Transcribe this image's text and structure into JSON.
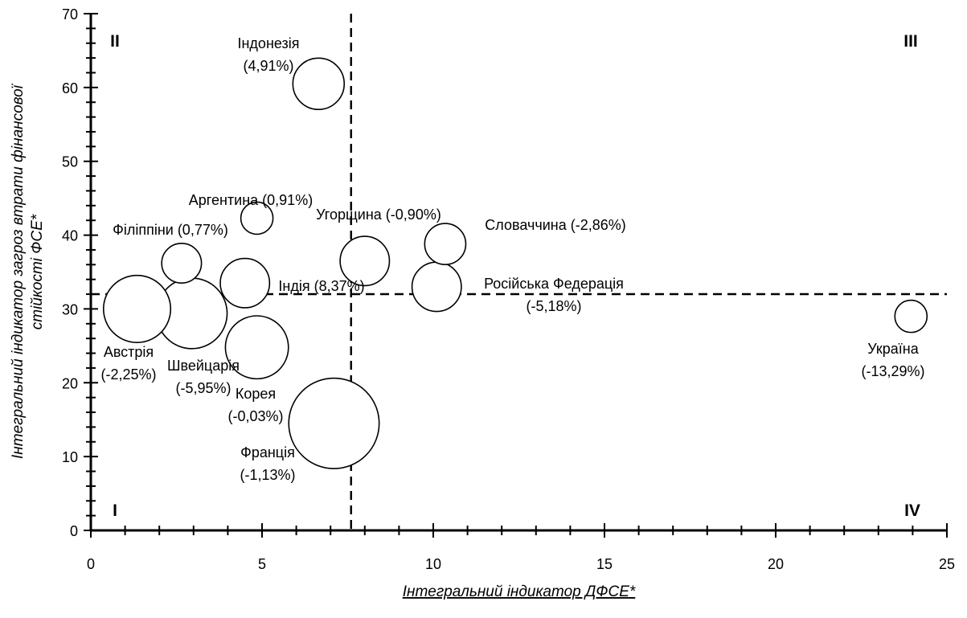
{
  "chart_data": {
    "type": "scatter",
    "subtype": "bubble",
    "title": "",
    "xlabel": "Інтегральний індикатор ДФСЕ*",
    "ylabel_lines": [
      "Інтегральний індикатор загроз втрати фінансової",
      "стійкості ФСЕ*"
    ],
    "xlim": [
      0,
      25
    ],
    "ylim": [
      0,
      70
    ],
    "x_ticks": [
      "0",
      "5",
      "10",
      "15",
      "20",
      "25"
    ],
    "y_ticks": [
      "0",
      "10",
      "20",
      "30",
      "40",
      "50",
      "60",
      "70"
    ],
    "grid": false,
    "reference_lines": {
      "x": 7.6,
      "y": 32
    },
    "quadrant_labels": [
      "I",
      "II",
      "III",
      "IV"
    ],
    "points": [
      {
        "x": 6.65,
        "y": 60.5,
        "r": 0.75,
        "label_lines": [
          "Індонезія",
          "(4,91%)"
        ]
      },
      {
        "x": 4.85,
        "y": 42.3,
        "r": 0.47,
        "label_lines": [
          "Аргентина (0,91%)"
        ]
      },
      {
        "x": 2.65,
        "y": 36.2,
        "r": 0.58,
        "label_lines": [
          "Філіппіни (0,77%)"
        ]
      },
      {
        "x": 4.5,
        "y": 33.5,
        "r": 0.72,
        "label_lines": [
          "Індія (8,37%)"
        ]
      },
      {
        "x": 8.0,
        "y": 36.5,
        "r": 0.72,
        "label_lines": [
          "Угорщина (-0,90%)"
        ]
      },
      {
        "x": 10.35,
        "y": 38.8,
        "r": 0.6,
        "label_lines": [
          "Словаччина (-2,86%)"
        ]
      },
      {
        "x": 10.1,
        "y": 33.0,
        "r": 0.72,
        "label_lines": [
          "Російська Федерація",
          "(-5,18%)"
        ]
      },
      {
        "x": 1.35,
        "y": 30.0,
        "r": 0.98,
        "label_lines": [
          "Австрія",
          "(-2,25%)"
        ]
      },
      {
        "x": 2.95,
        "y": 29.4,
        "r": 1.03,
        "label_lines": [
          "Швейцарія",
          "(-5,95%)"
        ]
      },
      {
        "x": 4.85,
        "y": 24.8,
        "r": 0.92,
        "label_lines": [
          "Корея",
          "(-0,03%)"
        ]
      },
      {
        "x": 7.1,
        "y": 14.5,
        "r": 1.32,
        "label_lines": [
          "Франція",
          "(-1,13%)"
        ]
      },
      {
        "x": 23.95,
        "y": 29.0,
        "r": 0.47,
        "label_lines": [
          "Україна",
          "(-13,29%)"
        ]
      }
    ]
  }
}
